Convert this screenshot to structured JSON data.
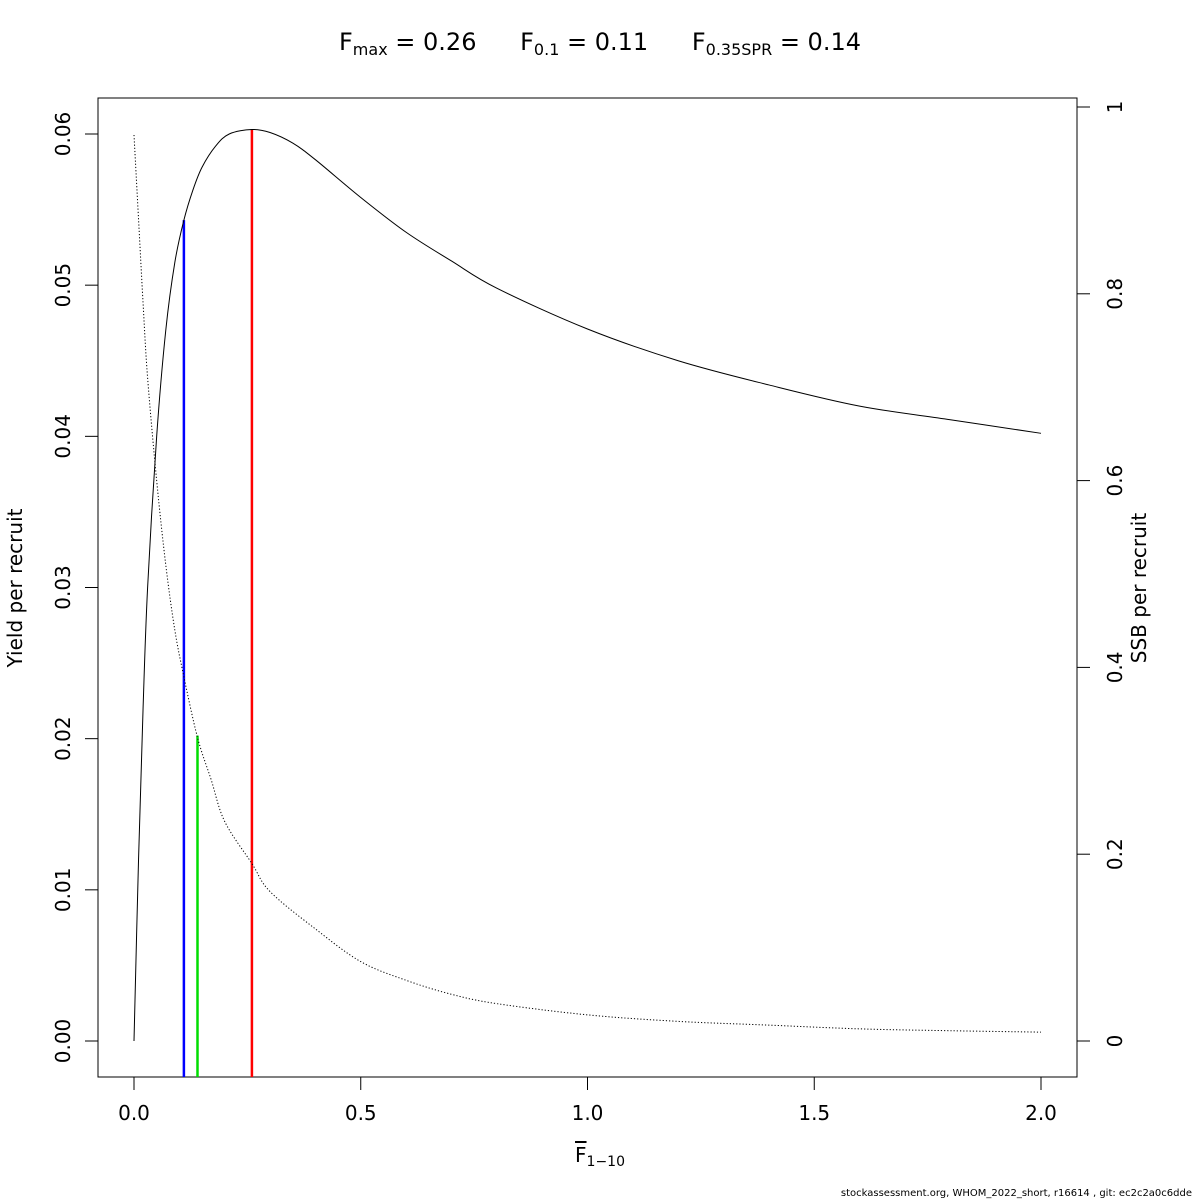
{
  "title": {
    "fmax": {
      "sym": "F",
      "sub": "max",
      "eq": " = 0.26"
    },
    "f01": {
      "sym": "F",
      "sub": "0.1",
      "eq": " = 0.11"
    },
    "fspr": {
      "sym": "F",
      "sub": "0.35SPR",
      "eq": " = 0.14"
    }
  },
  "credit": "stockassessment.org, WHOM_2022_short, r16614 , git: ec2c2a0c6dde",
  "chart_data": {
    "type": "line",
    "xlabel": {
      "sym": "F",
      "sub": "1−10"
    },
    "ylabel": "Yield per recruit",
    "y2label": "SSB per recruit",
    "xlim": [
      0,
      2
    ],
    "ylim": [
      0,
      0.06
    ],
    "y2lim": [
      0,
      1
    ],
    "x_ticks": [
      "0.0",
      "0.5",
      "1.0",
      "1.5",
      "2.0"
    ],
    "y_ticks": [
      "0.00",
      "0.01",
      "0.02",
      "0.03",
      "0.04",
      "0.05",
      "0.06"
    ],
    "y2_ticks": [
      "0",
      "0.2",
      "0.4",
      "0.6",
      "0.8",
      "1"
    ],
    "grid": false,
    "series": [
      {
        "style": "solid",
        "axis": "left",
        "x": [
          0,
          0.01,
          0.02,
          0.03,
          0.05,
          0.07,
          0.09,
          0.11,
          0.13,
          0.15,
          0.18,
          0.21,
          0.26,
          0.3,
          0.35,
          0.4,
          0.5,
          0.6,
          0.7,
          0.8,
          1.0,
          1.2,
          1.4,
          1.6,
          1.8,
          2.0
        ],
        "y": [
          0,
          0.012,
          0.022,
          0.03,
          0.04,
          0.047,
          0.0515,
          0.0543,
          0.0563,
          0.0578,
          0.0592,
          0.06,
          0.0603,
          0.0601,
          0.0594,
          0.0583,
          0.0558,
          0.0535,
          0.0516,
          0.0498,
          0.0471,
          0.045,
          0.0434,
          0.042,
          0.0411,
          0.0402
        ]
      },
      {
        "style": "dotted",
        "axis": "right",
        "x": [
          0,
          0.01,
          0.02,
          0.03,
          0.05,
          0.07,
          0.09,
          0.11,
          0.14,
          0.17,
          0.2,
          0.26,
          0.3,
          0.4,
          0.5,
          0.6,
          0.7,
          0.8,
          1.0,
          1.2,
          1.4,
          1.6,
          1.8,
          2.0
        ],
        "y": [
          0.97,
          0.88,
          0.79,
          0.71,
          0.6,
          0.51,
          0.44,
          0.39,
          0.325,
          0.28,
          0.235,
          0.19,
          0.16,
          0.12,
          0.085,
          0.065,
          0.05,
          0.04,
          0.028,
          0.021,
          0.017,
          0.013,
          0.011,
          0.0095
        ]
      }
    ],
    "reference_lines": [
      {
        "f": 0.26,
        "y_top": 0.0603,
        "color": "#ff0000"
      },
      {
        "f": 0.11,
        "y_top": 0.0543,
        "color": "#0000ff"
      },
      {
        "f": 0.14,
        "y_top": 0.0202,
        "color": "#00dd00"
      }
    ]
  }
}
